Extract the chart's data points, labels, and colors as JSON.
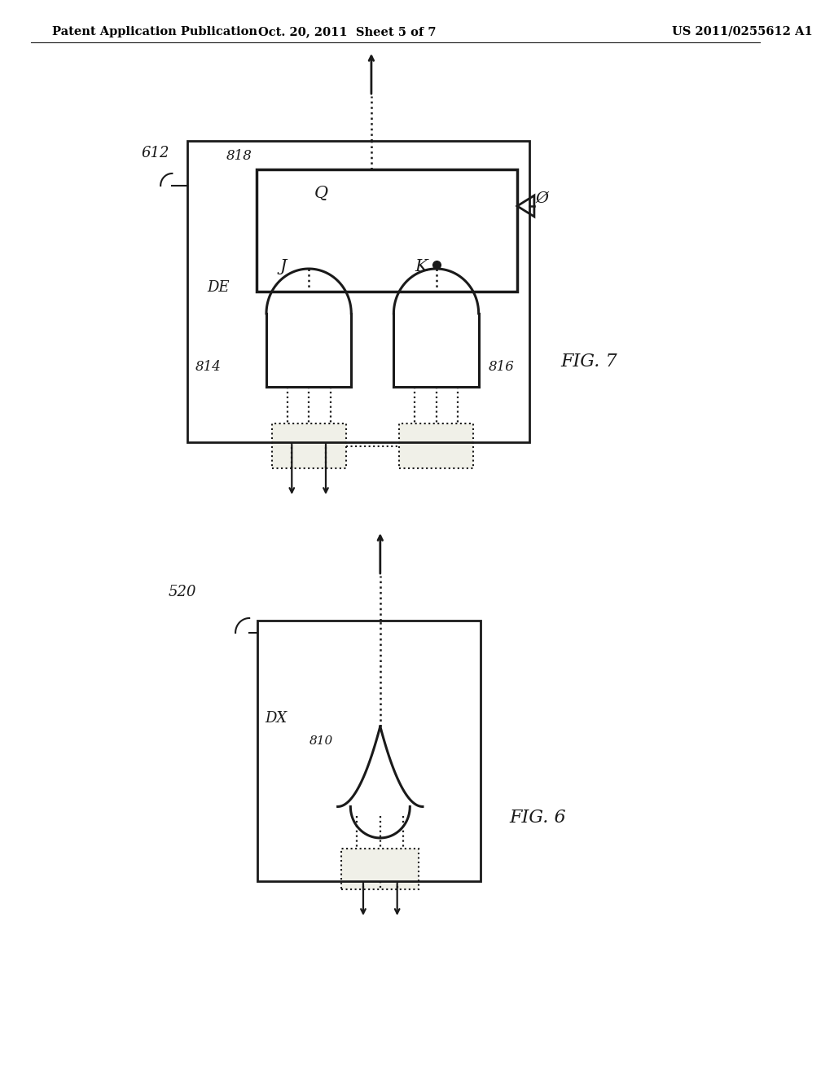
{
  "bg_color": "#ffffff",
  "header_left": "Patent Application Publication",
  "header_center": "Oct. 20, 2011  Sheet 5 of 7",
  "header_right": "US 2011/0255612 A1",
  "fig7_label": "FIG. 7",
  "fig6_label": "FIG. 6",
  "fig7_box_label": "612",
  "fig7_de_label": "DE",
  "fig7_818_label": "818",
  "fig7_814_label": "814",
  "fig7_816_label": "816",
  "fig7_Q_label": "Q",
  "fig7_J_label": "J",
  "fig7_K_label": "K",
  "fig7_Qbar_label": "Ø",
  "fig6_box_label": "520",
  "fig6_dx_label": "DX",
  "fig6_810_label": "810"
}
